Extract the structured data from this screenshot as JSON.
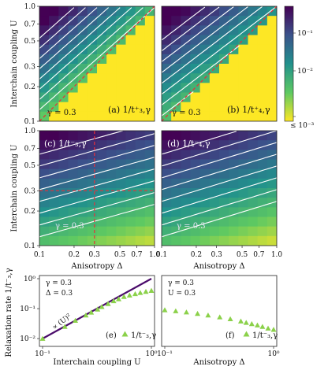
{
  "colorbar": {
    "tick_labels": [
      "10⁻¹",
      "10⁻²",
      "≤ 10⁻³"
    ],
    "colors": [
      "#440154",
      "#3b528b",
      "#21918c",
      "#5ec962",
      "#fde725"
    ]
  },
  "labels": {
    "ylabel_top": "Interchain coupling U",
    "ylabel_bottom": "Relaxation rate 1/t⁻₃,γ",
    "xlabel_mid_left": "Anisotropy Δ",
    "xlabel_mid_right": "Anisotropy Δ",
    "xlabel_bottom_left": "Interchain coupling U",
    "xlabel_bottom_right": "Anisotropy Δ",
    "gamma": "γ = 0.3",
    "delta_eq": "Δ = 0.3",
    "u_eq": "U = 0.3",
    "power_law": "∝ (U)²"
  },
  "panels": {
    "a": "(a) 1/t⁺₃,γ",
    "b": "(b) 1/t⁺₄,γ",
    "c": "(c) 1/t⁻₃,γ",
    "d": "(d) 1/t⁻₄,γ",
    "e_legend": "(e)",
    "f_legend": "(f)",
    "legend_series": "1/t⁻₃,γ"
  },
  "chart_data": [
    {
      "type": "heatmap",
      "panel": "a",
      "x_axis": "log",
      "y_axis": "log",
      "xlim": [
        0.1,
        1.0
      ],
      "ylim": [
        0.1,
        1.0
      ],
      "y_ticks": [
        "0.1",
        "0.2",
        "0.3",
        "0.5",
        "0.7",
        "1.0"
      ],
      "annotations": [
        "diagonal dashed line U = Δ"
      ]
    },
    {
      "type": "heatmap",
      "panel": "b",
      "x_axis": "log",
      "y_axis": "log",
      "xlim": [
        0.1,
        1.0
      ],
      "ylim": [
        0.1,
        1.0
      ],
      "annotations": [
        "diagonal dashed line U = Δ"
      ]
    },
    {
      "type": "heatmap",
      "panel": "c",
      "x_axis": "log",
      "y_axis": "log",
      "xlim": [
        0.1,
        1.0
      ],
      "ylim": [
        0.1,
        1.0
      ],
      "y_ticks": [
        "0.1",
        "0.2",
        "0.3",
        "0.5",
        "0.7",
        "1.0"
      ],
      "x_ticks": [
        "0.1",
        "0.2",
        "0.3",
        "0.5",
        "0.7",
        "1.0"
      ],
      "annotations": [
        "dashed line Δ = 0.3",
        "dashed line U = 0.3"
      ]
    },
    {
      "type": "heatmap",
      "panel": "d",
      "x_axis": "log",
      "y_axis": "log",
      "xlim": [
        0.1,
        1.0
      ],
      "ylim": [
        0.1,
        1.0
      ],
      "x_ticks": [
        "0.1",
        "0.2",
        "0.3",
        "0.5",
        "0.7",
        "1.0"
      ]
    },
    {
      "type": "scatter",
      "panel": "e",
      "x_axis": "log",
      "y_axis": "log",
      "xlim": [
        0.1,
        1.0
      ],
      "ylim": [
        0.007,
        1.0
      ],
      "x_ticks": [
        "10⁻¹",
        "10⁰"
      ],
      "y_ticks": [
        "10⁻²",
        "10⁻¹",
        "10⁰"
      ],
      "series": [
        {
          "name": "1/t⁻₃,γ",
          "x": [
            0.1,
            0.16,
            0.2,
            0.25,
            0.28,
            0.32,
            0.35,
            0.4,
            0.45,
            0.5,
            0.56,
            0.63,
            0.71,
            0.79,
            0.89,
            1.0
          ],
          "y": [
            0.01,
            0.025,
            0.04,
            0.06,
            0.075,
            0.095,
            0.115,
            0.145,
            0.18,
            0.21,
            0.25,
            0.28,
            0.31,
            0.34,
            0.37,
            0.4
          ]
        }
      ],
      "fit_line": {
        "x": [
          0.1,
          1.0
        ],
        "y": [
          0.01,
          1.0
        ]
      }
    },
    {
      "type": "scatter",
      "panel": "f",
      "x_axis": "log",
      "y_axis": "log",
      "xlim": [
        0.1,
        1.0
      ],
      "ylim": [
        0.007,
        1.0
      ],
      "x_ticks": [
        "10⁻¹",
        "10⁰"
      ],
      "series": [
        {
          "name": "1/t⁻₃,γ",
          "x": [
            0.1,
            0.126,
            0.158,
            0.2,
            0.25,
            0.32,
            0.4,
            0.5,
            0.56,
            0.63,
            0.71,
            0.79,
            0.89,
            1.0
          ],
          "y": [
            0.09,
            0.083,
            0.076,
            0.068,
            0.06,
            0.052,
            0.045,
            0.038,
            0.034,
            0.031,
            0.028,
            0.025,
            0.022,
            0.02
          ]
        }
      ]
    }
  ]
}
